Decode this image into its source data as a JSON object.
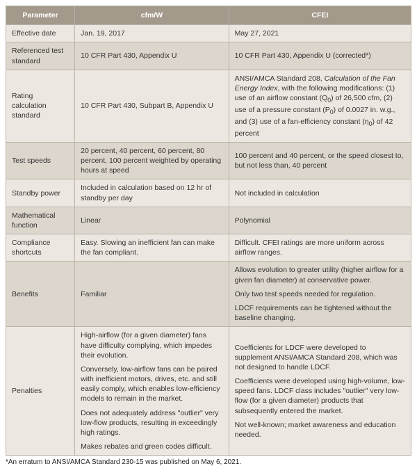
{
  "colors": {
    "header_bg": "#a49a8b",
    "header_text": "#ffffff",
    "zebra_a": "#ece8e1",
    "zebra_b": "#dcd6cc",
    "border": "#b9b2a7"
  },
  "headers": {
    "param": "Parameter",
    "cfmw": "cfm/W",
    "cfei": "CFEI"
  },
  "rows": [
    {
      "param": "Effective date",
      "cfmw": [
        "Jan. 19, 2017"
      ],
      "cfei": [
        "May 27, 2021"
      ]
    },
    {
      "param": "Referenced test standard",
      "cfmw": [
        "10 CFR Part 430, Appendix U"
      ],
      "cfei": [
        "10 CFR Part 430, Appendix U (corrected*)"
      ]
    },
    {
      "param": "Rating calculation standard",
      "cfmw": [
        "10 CFR Part 430, Subpart B, Appendix U"
      ],
      "cfei": [
        "ANSI/AMCA Standard 208, <span class=\"italic\">Calculation of the Fan Energy Index</span>, with the following modifications: (1) use of an airflow constant (Q<sub>0</sub>) of 26,500 cfm, (2) use of a pressure constant (P<sub>0</sub>) of 0.0027 in. w.g., and (3) use of a fan-efficiency constant (η<sub>0</sub>) of 42 percent"
      ]
    },
    {
      "param": "Test speeds",
      "cfmw": [
        "20 percent, 40 percent, 60 percent, 80 percent, 100 percent weighted by operating hours at speed"
      ],
      "cfei": [
        "100 percent and 40 percent, or the speed closest to, but not less than, 40 percent"
      ]
    },
    {
      "param": "Standby power",
      "cfmw": [
        "Included in calculation based on 12 hr of standby per day"
      ],
      "cfei": [
        "Not included in calculation"
      ]
    },
    {
      "param": "Mathematical function",
      "cfmw": [
        "Linear"
      ],
      "cfei": [
        "Polynomial"
      ]
    },
    {
      "param": "Compliance shortcuts",
      "cfmw": [
        "Easy. Slowing an inefficient fan can make the fan compliant."
      ],
      "cfei": [
        "Difficult. CFEI ratings are more uniform across airflow ranges."
      ]
    },
    {
      "param": "Benefits",
      "cfmw": [
        "Familiar"
      ],
      "cfei": [
        "Allows evolution to greater utility (higher airflow for a given fan diameter) at conservative power.",
        "Only two test speeds needed for regulation.",
        "LDCF requirements can be tightened without the baseline changing."
      ]
    },
    {
      "param": "Penalties",
      "cfmw": [
        "High-airflow (for a given diameter) fans have difficulty complying, which impedes their evolution.",
        "Conversely, low-airflow fans can be paired with inefficient motors, drives, etc. and still easily comply, which enables low-efficiency models to remain in the market.",
        "Does not adequately address \"outlier\" very low-flow products, resulting in exceedingly high ratings.",
        "Makes rebates and green codes difficult."
      ],
      "cfei": [
        "Coefficients for LDCF were developed to supplement ANSI/AMCA Standard 208, which was not designed to handle LDCF.",
        "Coefficients were developed using high-volume, low-speed fans. LDCF class includes \"outlier\" very low-flow (for a given diameter) products that subsequently entered the market.",
        "Not well-known; market awareness and education needed."
      ]
    }
  ],
  "footnote": "*An erratum to ANSI/AMCA Standard 230-15 was published on May 6, 2021."
}
